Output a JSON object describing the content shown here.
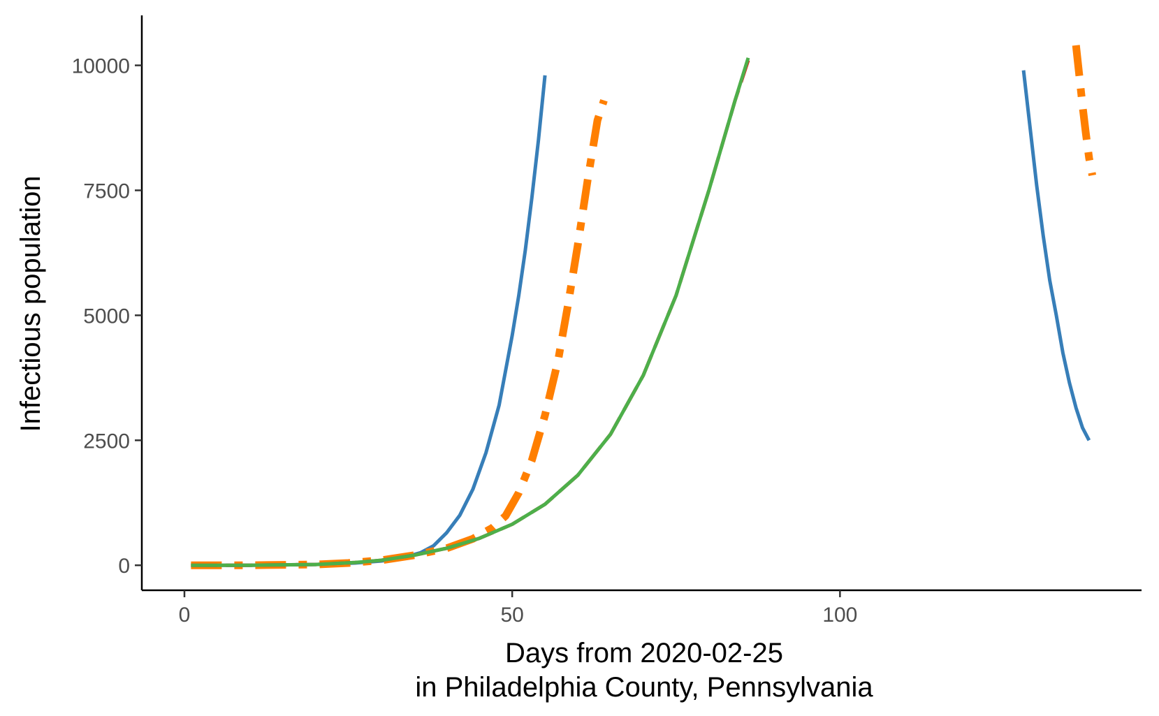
{
  "chart_data": {
    "type": "line",
    "title": "",
    "xlabel_line1": "Days from 2020-02-25",
    "xlabel_line2": "in Philadelphia County, Pennsylvania",
    "ylabel": "Infectious population",
    "xlim": [
      -6.5,
      146
    ],
    "ylim": [
      -500,
      11000
    ],
    "x_ticks": [
      0,
      50,
      100
    ],
    "y_ticks": [
      0,
      2500,
      5000,
      7500,
      10000
    ],
    "x_tick_labels": [
      "0",
      "50",
      "100"
    ],
    "y_tick_labels": [
      "0",
      "2500",
      "5000",
      "7500",
      "10000"
    ],
    "grid": false,
    "legend": "none",
    "series": [
      {
        "color": "#377eb8",
        "dash": "solid",
        "width": 5,
        "segments": [
          [
            [
              1,
              0
            ],
            [
              10,
              0
            ],
            [
              20,
              15
            ],
            [
              26,
              45
            ],
            [
              30,
              85
            ],
            [
              33,
              140
            ],
            [
              36,
              250
            ],
            [
              38,
              390
            ],
            [
              40,
              650
            ],
            [
              42,
              1000
            ],
            [
              44,
              1520
            ],
            [
              46,
              2250
            ],
            [
              48,
              3200
            ],
            [
              50,
              4600
            ],
            [
              51,
              5400
            ],
            [
              52,
              6300
            ],
            [
              53,
              7350
            ],
            [
              54,
              8500
            ],
            [
              55,
              9800
            ]
          ],
          [
            [
              128,
              9900
            ],
            [
              129,
              8750
            ],
            [
              130,
              7600
            ],
            [
              131,
              6600
            ],
            [
              132,
              5700
            ],
            [
              133,
              5000
            ],
            [
              134,
              4250
            ],
            [
              135,
              3650
            ],
            [
              136,
              3150
            ],
            [
              137,
              2750
            ],
            [
              138,
              2500
            ]
          ]
        ]
      },
      {
        "color": "#ff7f00",
        "dash": "dashdot",
        "width": 11,
        "segments": [
          [
            [
              1,
              0
            ],
            [
              10,
              0
            ],
            [
              20,
              15
            ],
            [
              25,
              45
            ],
            [
              30,
              100
            ],
            [
              35,
              200
            ],
            [
              40,
              340
            ],
            [
              44,
              530
            ],
            [
              47,
              750
            ],
            [
              49,
              990
            ],
            [
              51,
              1450
            ],
            [
              53,
              2100
            ],
            [
              55,
              3000
            ],
            [
              57,
              4100
            ],
            [
              58.5,
              5200
            ],
            [
              60,
              6400
            ],
            [
              61.5,
              7700
            ],
            [
              63,
              8900
            ],
            [
              64,
              9300
            ]
          ],
          [
            [
              136,
              10400
            ],
            [
              136.5,
              9800
            ],
            [
              137,
              9200
            ],
            [
              137.5,
              8650
            ],
            [
              138,
              8150
            ],
            [
              138.5,
              7800
            ]
          ]
        ]
      },
      {
        "color": "#e41a1c",
        "dash": "longdash",
        "width": 5,
        "segments": [
          [
            [
              1,
              0
            ],
            [
              10,
              0
            ],
            [
              20,
              15
            ],
            [
              26,
              55
            ],
            [
              30,
              100
            ],
            [
              35,
              200
            ],
            [
              40,
              340
            ],
            [
              45,
              540
            ],
            [
              50,
              820
            ],
            [
              55,
              1220
            ],
            [
              60,
              1800
            ],
            [
              65,
              2620
            ],
            [
              70,
              3800
            ],
            [
              75,
              5400
            ],
            [
              80,
              7500
            ],
            [
              84,
              9300
            ],
            [
              86,
              10100
            ]
          ]
        ]
      },
      {
        "color": "#4daf4a",
        "dash": "solid",
        "width": 5,
        "segments": [
          [
            [
              1,
              0
            ],
            [
              10,
              0
            ],
            [
              20,
              15
            ],
            [
              26,
              55
            ],
            [
              30,
              100
            ],
            [
              35,
              200
            ],
            [
              40,
              340
            ],
            [
              45,
              540
            ],
            [
              50,
              820
            ],
            [
              55,
              1220
            ],
            [
              60,
              1800
            ],
            [
              65,
              2620
            ],
            [
              70,
              3800
            ],
            [
              75,
              5400
            ],
            [
              80,
              7500
            ],
            [
              84,
              9300
            ],
            [
              86,
              10150
            ]
          ]
        ]
      }
    ]
  }
}
